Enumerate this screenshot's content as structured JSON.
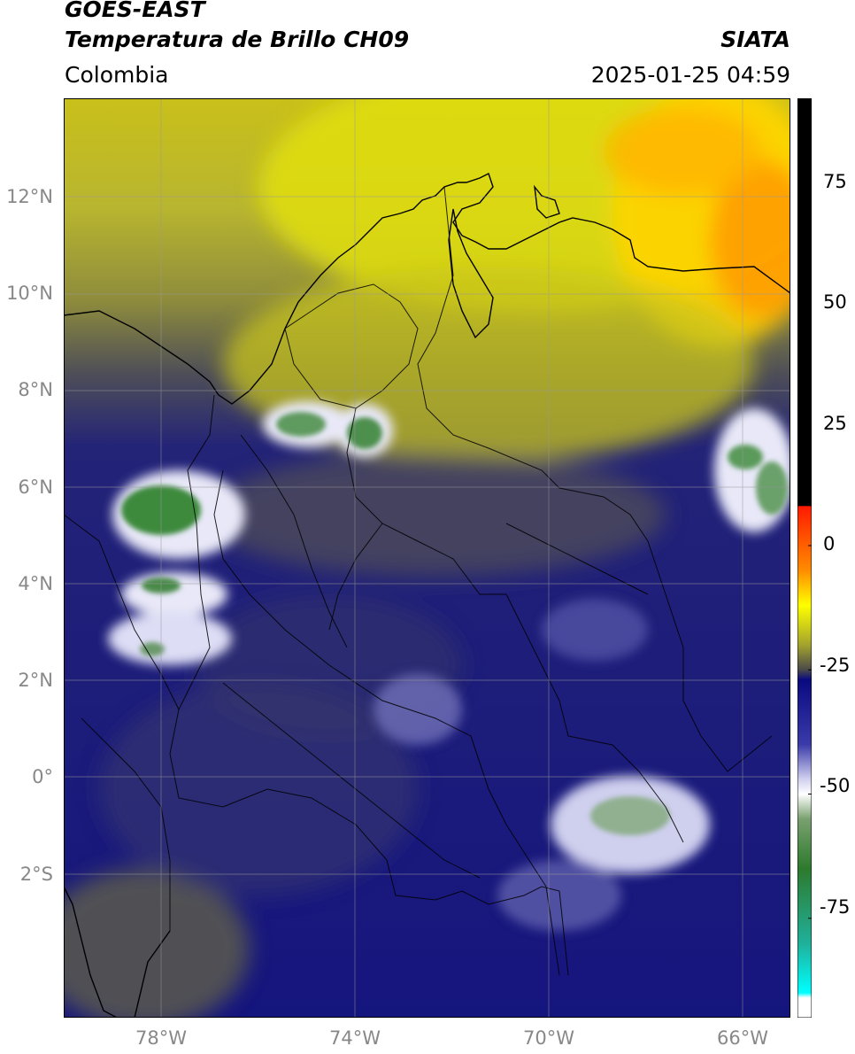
{
  "header": {
    "satellite": "GOES-EAST",
    "product": "Temperatura de Brillo CH09",
    "region": "Colombia",
    "source": "SIATA",
    "datetime": "2025-01-25 04:59"
  },
  "axes": {
    "lat_ticks": [
      "12°N",
      "10°N",
      "8°N",
      "6°N",
      "4°N",
      "2°N",
      "0°",
      "2°S"
    ],
    "lon_ticks": [
      "78°W",
      "74°W",
      "70°W",
      "66°W"
    ]
  },
  "colorbar": {
    "ticks": [
      "75",
      "50",
      "25",
      "0",
      "-25",
      "-50",
      "-75"
    ],
    "stops": [
      {
        "v": 90,
        "c": "#000000"
      },
      {
        "v": 8,
        "c": "#000000"
      },
      {
        "v": 7.9,
        "c": "#ff1a00"
      },
      {
        "v": -5,
        "c": "#ff8c00"
      },
      {
        "v": -12,
        "c": "#ffff00"
      },
      {
        "v": -20,
        "c": "#a3a32e"
      },
      {
        "v": -25,
        "c": "#4a4a4a"
      },
      {
        "v": -27,
        "c": "#0a0a80"
      },
      {
        "v": -40,
        "c": "#3a3aa8"
      },
      {
        "v": -47,
        "c": "#d0d0f0"
      },
      {
        "v": -50,
        "c": "#ffffff"
      },
      {
        "v": -55,
        "c": "#7aa070"
      },
      {
        "v": -65,
        "c": "#2d7a2d"
      },
      {
        "v": -80,
        "c": "#20b09a"
      },
      {
        "v": -90,
        "c": "#00ffff"
      },
      {
        "v": -91,
        "c": "#ffffff"
      },
      {
        "v": -95,
        "c": "#ffffff"
      }
    ]
  }
}
